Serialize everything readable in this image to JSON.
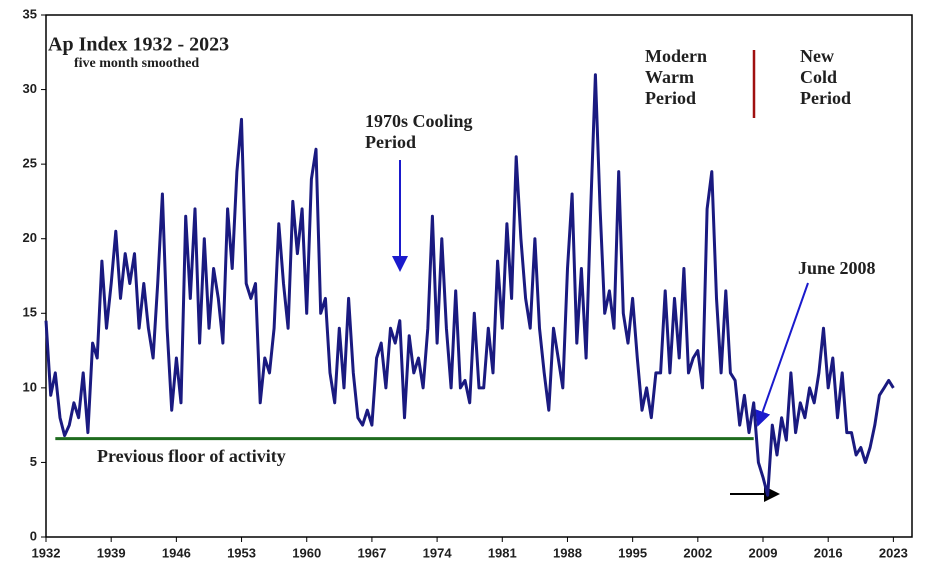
{
  "chart_data": {
    "type": "line",
    "title": "Ap Index 1932 - 2023",
    "subtitle": "five month smoothed",
    "annotations": [
      {
        "lines": [
          "Modern",
          "Warm",
          "Period"
        ]
      },
      {
        "lines": [
          "New",
          "Cold",
          "Period"
        ]
      },
      {
        "lines": [
          "1970s Cooling",
          "Period"
        ]
      },
      {
        "lines": [
          "June 2008"
        ]
      }
    ],
    "floor_line": {
      "label": "Previous floor of activity",
      "value": 6.6,
      "x": [
        1933,
        2008
      ],
      "color": "#1e6b1e"
    },
    "xlim": [
      1932,
      2025
    ],
    "ylim": [
      0,
      35
    ],
    "xticks": [
      1932,
      1939,
      1946,
      1953,
      1960,
      1967,
      1974,
      1981,
      1988,
      1995,
      2002,
      2009,
      2016,
      2023
    ],
    "yticks": [
      0,
      5,
      10,
      15,
      20,
      25,
      30,
      35
    ],
    "series": [
      {
        "name": "Ap Index",
        "color": "#1a1a80",
        "x": [
          1932,
          1932.5,
          1933,
          1933.5,
          1934,
          1934.5,
          1935,
          1935.5,
          1936,
          1936.5,
          1937,
          1937.5,
          1938,
          1938.5,
          1939,
          1939.5,
          1940,
          1940.5,
          1941,
          1941.5,
          1942,
          1942.5,
          1943,
          1943.5,
          1944,
          1944.5,
          1945,
          1945.5,
          1946,
          1946.5,
          1947,
          1947.5,
          1948,
          1948.5,
          1949,
          1949.5,
          1950,
          1950.5,
          1951,
          1951.5,
          1952,
          1952.5,
          1953,
          1953.5,
          1954,
          1954.5,
          1955,
          1955.5,
          1956,
          1956.5,
          1957,
          1957.5,
          1958,
          1958.5,
          1959,
          1959.5,
          1960,
          1960.5,
          1961,
          1961.5,
          1962,
          1962.5,
          1963,
          1963.5,
          1964,
          1964.5,
          1965,
          1965.5,
          1966,
          1966.5,
          1967,
          1967.5,
          1968,
          1968.5,
          1969,
          1969.5,
          1970,
          1970.5,
          1971,
          1971.5,
          1972,
          1972.5,
          1973,
          1973.5,
          1974,
          1974.5,
          1975,
          1975.5,
          1976,
          1976.5,
          1977,
          1977.5,
          1978,
          1978.5,
          1979,
          1979.5,
          1980,
          1980.5,
          1981,
          1981.5,
          1982,
          1982.5,
          1983,
          1983.5,
          1984,
          1984.5,
          1985,
          1985.5,
          1986,
          1986.5,
          1987,
          1987.5,
          1988,
          1988.5,
          1989,
          1989.5,
          1990,
          1990.5,
          1991,
          1991.5,
          1992,
          1992.5,
          1993,
          1993.5,
          1994,
          1994.5,
          1995,
          1995.5,
          1996,
          1996.5,
          1997,
          1997.5,
          1998,
          1998.5,
          1999,
          1999.5,
          2000,
          2000.5,
          2001,
          2001.5,
          2002,
          2002.5,
          2003,
          2003.5,
          2004,
          2004.5,
          2005,
          2005.5,
          2006,
          2006.5,
          2007,
          2007.5,
          2008,
          2008.5,
          2009,
          2009.5,
          2010,
          2010.5,
          2011,
          2011.5,
          2012,
          2012.5,
          2013,
          2013.5,
          2014,
          2014.5,
          2015,
          2015.5,
          2016,
          2016.5,
          2017,
          2017.5,
          2018,
          2018.5,
          2019,
          2019.5,
          2020,
          2020.5,
          2021,
          2021.5,
          2022,
          2022.5,
          2023
        ],
        "values": [
          14.5,
          9.5,
          11,
          8,
          6.8,
          7.5,
          9,
          8,
          11,
          7,
          13,
          12,
          18.5,
          14,
          17,
          20.5,
          16,
          19,
          17,
          19,
          14,
          17,
          14,
          12,
          17,
          23,
          14,
          8.5,
          12,
          9,
          21.5,
          16,
          22,
          13,
          20,
          14,
          18,
          16,
          13,
          22,
          18,
          24.5,
          28,
          17,
          16,
          17,
          9,
          12,
          11,
          14,
          21,
          17,
          14,
          22.5,
          19,
          22,
          15,
          24,
          26,
          15,
          16,
          11,
          9,
          14,
          10,
          16,
          11,
          8,
          7.5,
          8.5,
          7.5,
          12,
          13,
          10,
          14,
          13,
          14.5,
          8,
          13.5,
          11,
          12,
          10,
          14,
          21.5,
          13,
          20,
          14,
          10,
          16.5,
          10,
          10.5,
          9,
          15,
          10,
          10,
          14,
          11,
          18.5,
          14,
          21,
          16,
          25.5,
          20,
          16,
          14,
          20,
          14,
          11,
          8.5,
          14,
          12,
          10,
          18,
          23,
          13,
          18,
          12,
          22,
          31,
          22,
          15,
          16.5,
          14,
          24.5,
          15,
          13,
          16,
          12,
          8.5,
          10,
          8,
          11,
          11,
          16.5,
          11,
          16,
          12,
          18,
          11,
          12,
          12.5,
          10,
          22,
          24.5,
          16,
          11,
          16.5,
          11,
          10.5,
          7.5,
          9.5,
          7,
          9,
          5,
          4,
          2.8,
          7.5,
          5.5,
          8,
          6.5,
          11,
          7,
          9,
          8,
          10,
          9,
          11,
          14,
          10,
          12,
          8,
          11,
          7,
          7,
          5.5,
          6,
          5,
          6,
          7.5,
          9.5,
          10,
          10.5,
          10
        ]
      }
    ]
  }
}
